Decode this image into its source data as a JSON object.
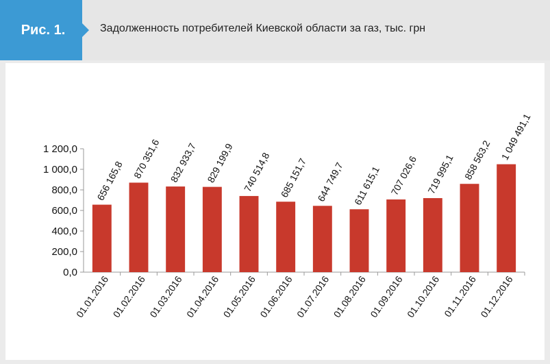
{
  "figure": {
    "label": "Рис. 1.",
    "title": "Задолженность потребителей Киевской области за газ, тыс. грн"
  },
  "colors": {
    "bar": "#c8392c",
    "badge": "#3c9ad4",
    "axis": "#999999"
  },
  "chart_data": {
    "type": "bar",
    "title": "",
    "xlabel": "",
    "ylabel": "",
    "categories": [
      "01.01.2016",
      "01.02.2016",
      "01.03.2016",
      "01.04.2016",
      "01.05.2016",
      "01.06.2016",
      "01.07.2016",
      "01.08.2016",
      "01.09.2016",
      "01.10.2016",
      "01.11.2016",
      "01.12.2016"
    ],
    "values": [
      656.1658,
      870.3516,
      832.9337,
      829.1999,
      740.5148,
      685.1517,
      644.7497,
      611.6151,
      707.0266,
      719.9951,
      858.5632,
      1049.4911
    ],
    "data_labels": [
      "656 165,8",
      "870 351,6",
      "832 933,7",
      "829 199,9",
      "740 514,8",
      "685 151,7",
      "644 749,7",
      "611 615,1",
      "707 026,6",
      "719 995,1",
      "858 563,2",
      "1 049 491,1"
    ],
    "yticks": [
      0,
      200,
      400,
      600,
      800,
      1000,
      1200
    ],
    "ytick_labels": [
      "0,0",
      "200,0",
      "400,0",
      "600,0",
      "800,0",
      "1 000,0",
      "1 200,0"
    ],
    "ylim": [
      0,
      1200
    ],
    "grid": false,
    "legend": "none"
  }
}
